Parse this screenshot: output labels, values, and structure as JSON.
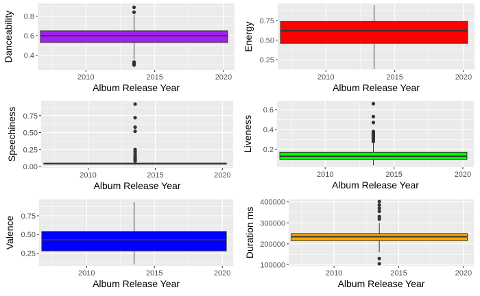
{
  "chart_data": [
    {
      "type": "boxplot",
      "xlabel": "Album Release Year",
      "ylabel": "Danceability",
      "fill": "#a020f0",
      "xlim": [
        2006.5,
        2020.8
      ],
      "ylim": [
        0.25,
        0.93
      ],
      "xticks": [
        2010,
        2015,
        2020
      ],
      "yticks": [
        0.4,
        0.6,
        0.8
      ],
      "ytick_labels": [
        "0.4",
        "0.6",
        "0.8"
      ],
      "box": {
        "x_start": 2006.7,
        "x_end": 2020.3,
        "x_center": 2013.5,
        "q1": 0.53,
        "median": 0.6,
        "q3": 0.65,
        "whisker_low": 0.36,
        "whisker_high": 0.81
      },
      "outliers": [
        0.3,
        0.31,
        0.32,
        0.33,
        0.84,
        0.89
      ]
    },
    {
      "type": "boxplot",
      "xlabel": "Album Release Year",
      "ylabel": "Energy",
      "fill": "#ff0000",
      "xlim": [
        2006.5,
        2020.8
      ],
      "ylim": [
        0.12,
        0.97
      ],
      "xticks": [
        2010,
        2015,
        2020
      ],
      "yticks": [
        0.25,
        0.5,
        0.75
      ],
      "ytick_labels": [
        "0.25",
        "0.50",
        "0.75"
      ],
      "box": {
        "x_start": 2006.7,
        "x_end": 2020.3,
        "x_center": 2013.5,
        "q1": 0.46,
        "median": 0.62,
        "q3": 0.74,
        "whisker_low": 0.13,
        "whisker_high": 0.95
      },
      "outliers": []
    },
    {
      "type": "boxplot",
      "xlabel": "Album Release Year",
      "ylabel": "Speechiness",
      "fill": "#333333",
      "xlim": [
        2006.5,
        2020.8
      ],
      "ylim": [
        -0.02,
        0.97
      ],
      "xticks": [
        2010,
        2015,
        2020
      ],
      "yticks": [
        0,
        0.25,
        0.5,
        0.75
      ],
      "ytick_labels": [
        "0.00",
        "0.25",
        "0.50",
        "0.75"
      ],
      "box": {
        "x_start": 2006.7,
        "x_end": 2020.3,
        "x_center": 2013.5,
        "q1": 0.035,
        "median": 0.04,
        "q3": 0.05,
        "whisker_low": 0.025,
        "whisker_high": 0.07
      },
      "outliers": [
        0.08,
        0.1,
        0.12,
        0.14,
        0.16,
        0.19,
        0.22,
        0.25,
        0.52,
        0.58,
        0.72,
        0.92
      ]
    },
    {
      "type": "boxplot",
      "xlabel": "Album Release Year",
      "ylabel": "Liveness",
      "fill": "#00ff00",
      "xlim": [
        2006.5,
        2020.8
      ],
      "ylim": [
        0.02,
        0.69
      ],
      "xticks": [
        2010,
        2015,
        2020
      ],
      "yticks": [
        0.2,
        0.4,
        0.6
      ],
      "ytick_labels": [
        "0.2",
        "0.4",
        "0.6"
      ],
      "box": {
        "x_start": 2006.7,
        "x_end": 2020.3,
        "x_center": 2013.5,
        "q1": 0.1,
        "median": 0.13,
        "q3": 0.17,
        "whisker_low": 0.04,
        "whisker_high": 0.27
      },
      "outliers": [
        0.28,
        0.3,
        0.31,
        0.32,
        0.33,
        0.34,
        0.35,
        0.36,
        0.37,
        0.38,
        0.47,
        0.53,
        0.66
      ]
    },
    {
      "type": "boxplot",
      "xlabel": "Album Release Year",
      "ylabel": "Valence",
      "fill": "#0000ff",
      "xlim": [
        2006.5,
        2020.8
      ],
      "ylim": [
        0.08,
        0.97
      ],
      "xticks": [
        2010,
        2015,
        2020
      ],
      "yticks": [
        0.25,
        0.5,
        0.75
      ],
      "ytick_labels": [
        "0.25",
        "0.50",
        "0.75"
      ],
      "box": {
        "x_start": 2006.7,
        "x_end": 2020.3,
        "x_center": 2013.5,
        "q1": 0.28,
        "median": 0.43,
        "q3": 0.54,
        "whisker_low": 0.1,
        "whisker_high": 0.93
      },
      "outliers": []
    },
    {
      "type": "boxplot",
      "xlabel": "Album Release Year",
      "ylabel": "Duration ms",
      "fill": "#ffa500",
      "xlim": [
        2006.5,
        2020.8
      ],
      "ylim": [
        95000,
        412000
      ],
      "xticks": [
        2010,
        2015,
        2020
      ],
      "yticks": [
        100000,
        200000,
        300000,
        400000
      ],
      "ytick_labels": [
        "100000",
        "200000",
        "300000",
        "400000"
      ],
      "box": {
        "x_start": 2006.7,
        "x_end": 2020.3,
        "x_center": 2013.5,
        "q1": 215000,
        "median": 234000,
        "q3": 249000,
        "whisker_low": 160000,
        "whisker_high": 300000
      },
      "outliers": [
        105000,
        130000,
        318000,
        330000,
        355000,
        370000,
        385000,
        402000
      ]
    }
  ]
}
